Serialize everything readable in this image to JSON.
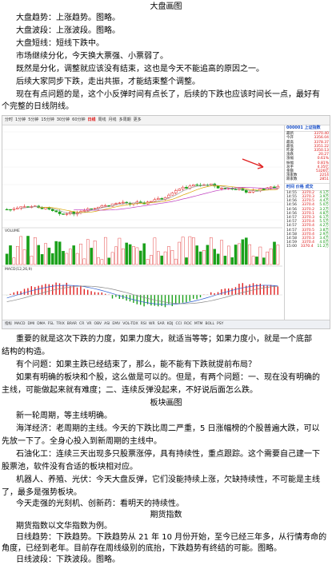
{
  "sections": {
    "dapan_title": "大盘画图",
    "bankuai_title": "板块画图",
    "qihuo_title": "期货指数"
  },
  "paragraphs": {
    "p1": "大盘趋势：上涨趋势。图略。",
    "p2": "大盘波段：上涨波段。图略。",
    "p3": "大盘短线：短线下跌中。",
    "p4": "市场继续分化，今天换大票强、小票弱了。",
    "p5": "既然是分化，调整就应该没有结束，这也是今天不能追高的原因之一。",
    "p6": "后续大家同步下跌，走出共振，才能结束整个调整。",
    "p7a": "现在有点问题的是，这个小反弹时间有点长了，后续的下跌也应该时间长一点，最好有",
    "p7b": "个完整的日线阴线。",
    "p8a": "重要的就是这次下跌的力度，如果力度大，就适当等等；如果力度小，就是一个底部",
    "p8b": "结构的构造。",
    "p9": "有个问题：如果主跌已经结束了，那么，能不能有下跌就提前布局？",
    "p10a": "如果有明确的板块和个股，这么做是可以的。但是，有两个问题：一、现在没有明确的",
    "p10b": "主线，可能做起来就有难度；二、连续反弹没起来，不好说后面怎么跌。",
    "p11": "新一轮周期，等主线明确。",
    "p12a": "海洋经济：老周期的主线。今天的下跌比周二严重，5 日涨幅榜的个股普遍大跌，可以",
    "p12b": "先放一下了。全身心投入到新周期的主线中。",
    "p13a": "石油化工：连续三天出现多只股票涨停，具有持续性，重点跟踪。这个需要自己建一下",
    "p13b": "股票池，软件没有合适的板块相对应。",
    "p14a": "机器人、养殖、光伏：今天大盘反弹，它们没能持续上涨，欠缺持续性，不可能是主线",
    "p14b": "了，最多是强势板块。",
    "p15": "今天走强的光刻机、创新药：看明天的持续性。",
    "p16": "期货指数以文华指数为例。",
    "p17a": "日线趋势：下跌趋势。下跌趋势从 21 年 10 月份开始，至今已经三年多，从行情寿命的",
    "p17b": "角度，已经到老年。目前存在周线级别的底抬，下跌趋势有终结的可能。图略。",
    "p18": "日线波段：下跌波段。图略。"
  },
  "chart_screenshot": {
    "toolbar": [
      "分时",
      "1分钟",
      "5分钟",
      "15分钟",
      "30分钟",
      "60分钟",
      "日线",
      "周线",
      "月线",
      "多周期",
      "更多"
    ],
    "active_tab": "日线",
    "panel_header": "000001 上证指数",
    "panel_rows": [
      [
        "最新",
        "3370.40"
      ],
      [
        "今开",
        "3356.04"
      ],
      [
        "最高",
        "3378.37"
      ],
      [
        "最低",
        "3351.22"
      ],
      [
        "昨收",
        "3350.13"
      ],
      [
        "涨跌",
        "20.27"
      ],
      [
        "涨幅",
        "0.61%"
      ],
      [
        "振幅",
        "0.81%"
      ],
      [
        "总手",
        "4.35亿"
      ],
      [
        "金额",
        "5326亿"
      ],
      [
        "涨家数",
        "2214"
      ],
      [
        "跌家数",
        "2851"
      ]
    ],
    "ticks_header": "时间 价格 成交",
    "ticks": [
      [
        "14:55",
        "3370.2",
        "4.1万"
      ],
      [
        "14:55",
        "3370.3",
        "3.9万"
      ],
      [
        "14:56",
        "3370.5",
        "4.4万"
      ],
      [
        "14:56",
        "3370.4",
        "5.0万"
      ],
      [
        "14:56",
        "3370.2",
        "3.2万"
      ],
      [
        "14:56",
        "3370.1",
        "4.8万"
      ],
      [
        "14:57",
        "3370.3",
        "6.1万"
      ],
      [
        "14:57",
        "3370.4",
        "5.5万"
      ],
      [
        "14:57",
        "3370.4",
        "4.2万"
      ],
      [
        "14:57",
        "3370.5",
        "3.8万"
      ],
      [
        "14:58",
        "3370.4",
        "2.9万"
      ],
      [
        "14:58",
        "3370.3",
        "3.4万"
      ],
      [
        "14:59",
        "3370.4",
        "4.0万"
      ],
      [
        "15:00",
        "3370.4",
        "11.2万"
      ]
    ],
    "vol_label": "VOLUME",
    "macd_label": "MACD(12,26,9)",
    "bottom_tabs": [
      "指标",
      "MACD",
      "DMI",
      "DMA",
      "FSL",
      "TRIX",
      "BRAR",
      "CR",
      "VR",
      "OBV",
      "ASI",
      "EMV",
      "VOL-TDX",
      "RSI",
      "WR",
      "SAR",
      "KDJ",
      "CCI",
      "ROC",
      "MTM",
      "BOLL",
      "PSY"
    ],
    "up_color": "#e02020",
    "down_color": "#1aa01a"
  }
}
